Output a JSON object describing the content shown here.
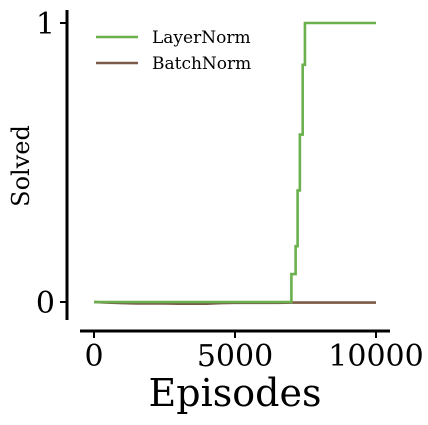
{
  "chart_data": {
    "type": "line",
    "title": "",
    "xlabel": "Episodes",
    "ylabel": "Solved",
    "xlim": [
      -500,
      10500
    ],
    "ylim": [
      -0.06,
      1.04
    ],
    "xticks": [
      0,
      5000,
      10000
    ],
    "xtick_labels": [
      "0",
      "5000",
      "10000"
    ],
    "yticks": [
      0,
      1
    ],
    "ytick_labels": [
      "0",
      "1"
    ],
    "grid": false,
    "legend": {
      "position": "top-left",
      "frameless": true
    },
    "series": [
      {
        "name": "LayerNorm",
        "color": "#6ab04c",
        "x": [
          0,
          1000,
          2000,
          3000,
          4000,
          5000,
          6000,
          7000,
          7000,
          7150,
          7150,
          7220,
          7220,
          7300,
          7300,
          7400,
          7400,
          7480,
          7480,
          10000
        ],
        "y": [
          0,
          0,
          0,
          0,
          0,
          0,
          0,
          0,
          0.1,
          0.1,
          0.2,
          0.2,
          0.4,
          0.4,
          0.6,
          0.6,
          0.85,
          0.85,
          1.0,
          1.0
        ]
      },
      {
        "name": "BatchNorm",
        "color": "#7b5a48",
        "x": [
          0,
          500,
          1000,
          1500,
          2000,
          2500,
          3000,
          3500,
          4000,
          4500,
          5000,
          5500,
          6000,
          6500,
          7000,
          7500,
          8000,
          8500,
          9000,
          9500,
          10000
        ],
        "y": [
          0.0,
          -0.002,
          -0.004,
          -0.005,
          -0.005,
          -0.005,
          -0.006,
          -0.006,
          -0.006,
          -0.004,
          -0.003,
          -0.003,
          -0.003,
          -0.003,
          -0.002,
          -0.002,
          -0.002,
          -0.002,
          -0.002,
          -0.002,
          -0.002
        ]
      }
    ]
  }
}
